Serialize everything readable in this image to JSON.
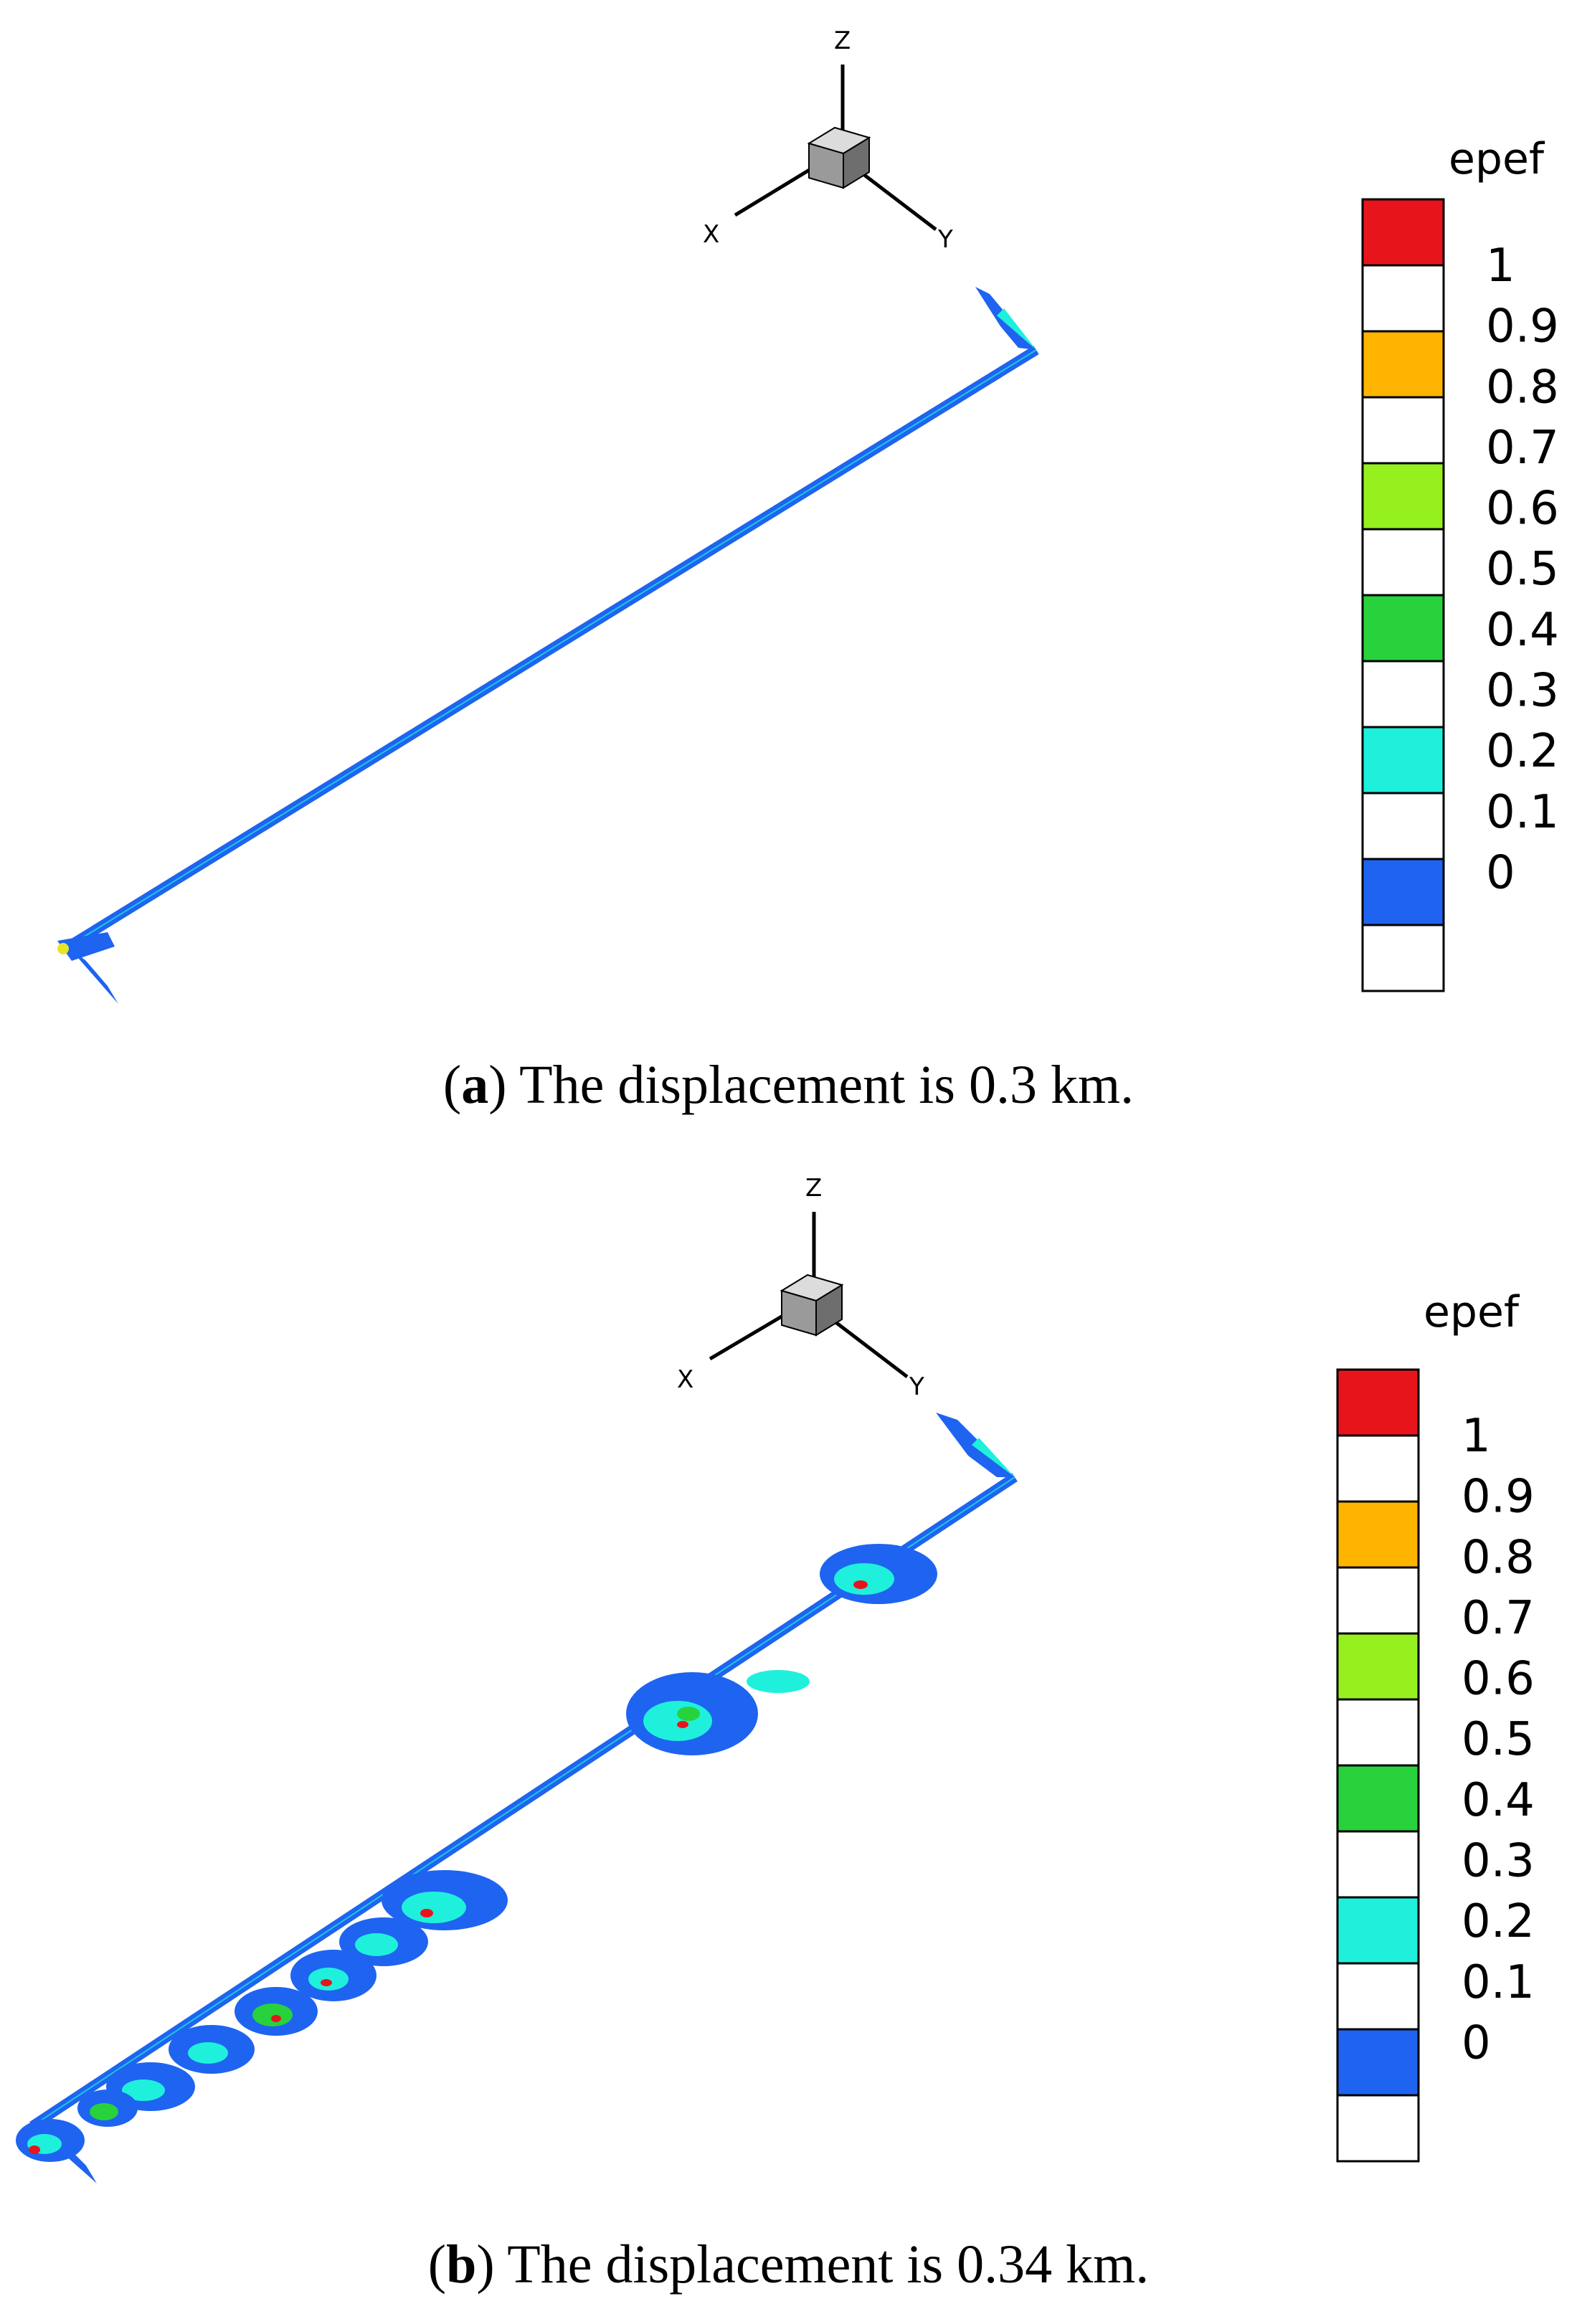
{
  "panels": [
    {
      "id": "a",
      "caption_letter": "a",
      "caption_text": "The displacement is 0.3 km.",
      "axis_labels": {
        "x": "X",
        "y": "Y",
        "z": "Z"
      }
    },
    {
      "id": "b",
      "caption_letter": "b",
      "caption_text": "The displacement is 0.34 km.",
      "axis_labels": {
        "x": "X",
        "y": "Y",
        "z": "Z"
      }
    }
  ],
  "legend": {
    "title": "epef",
    "ticks": [
      "1",
      "0.9",
      "0.8",
      "0.7",
      "0.6",
      "0.5",
      "0.4",
      "0.3",
      "0.2",
      "0.1",
      "0"
    ],
    "bands": [
      {
        "range": [
          0.9,
          1.0
        ],
        "color": "#e8141c"
      },
      {
        "range": [
          0.8,
          0.9
        ],
        "color": "#ffffff"
      },
      {
        "range": [
          0.7,
          0.8
        ],
        "color": "#ffb400"
      },
      {
        "range": [
          0.6,
          0.7
        ],
        "color": "#ffffff"
      },
      {
        "range": [
          0.5,
          0.6
        ],
        "color": "#96f01e"
      },
      {
        "range": [
          0.4,
          0.5
        ],
        "color": "#ffffff"
      },
      {
        "range": [
          0.3,
          0.4
        ],
        "color": "#28d23c"
      },
      {
        "range": [
          0.2,
          0.3
        ],
        "color": "#ffffff"
      },
      {
        "range": [
          0.1,
          0.2
        ],
        "color": "#1ef0dc"
      },
      {
        "range": [
          0.0,
          0.1
        ],
        "color": "#ffffff"
      },
      {
        "range": [
          -0.1,
          0.0
        ],
        "color": "#1e64f0"
      },
      {
        "range": [
          -0.2,
          -0.1
        ],
        "color": "#ffffff"
      }
    ]
  },
  "colors": {
    "fault_blue": "#1e64f0",
    "cyan": "#1ef0dc",
    "green": "#28d23c",
    "yellow": "#e6e628",
    "red": "#e8141c"
  }
}
